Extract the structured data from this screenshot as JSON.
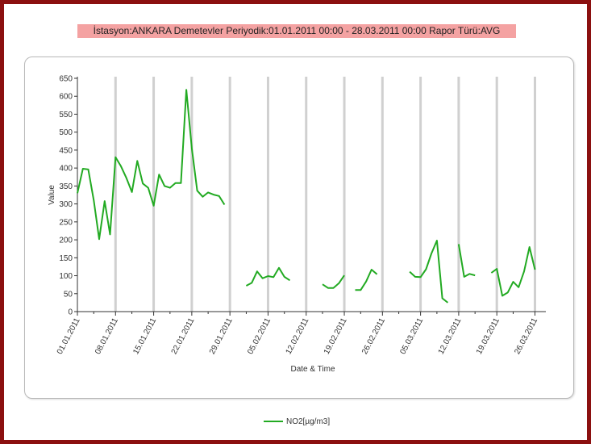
{
  "report": {
    "title": "İstasyon:ANKARA Demetevler Periyodik:01.01.2011  00:00 - 28.03.2011  00:00  Rapor Türü:AVG"
  },
  "chart_data": {
    "type": "line",
    "xlabel": "Date & Time",
    "ylabel": "Value",
    "ylim": [
      0,
      650
    ],
    "yticks": [
      0,
      50,
      100,
      150,
      200,
      250,
      300,
      350,
      400,
      450,
      500,
      550,
      600,
      650
    ],
    "xlim": [
      "2011-01-01",
      "2011-03-28"
    ],
    "xtick_labels": [
      "01.01.2011",
      "08.01.2011",
      "15.01.2011",
      "22.01.2011",
      "29.01.2011",
      "05.02.2011",
      "12.02.2011",
      "19.02.2011",
      "26.02.2011",
      "05.03.2011",
      "12.03.2011",
      "19.03.2011",
      "26.03.2011"
    ],
    "xtick_dates": [
      "2011-01-01",
      "2011-01-08",
      "2011-01-15",
      "2011-01-22",
      "2011-01-29",
      "2011-02-05",
      "2011-02-12",
      "2011-02-19",
      "2011-02-26",
      "2011-03-05",
      "2011-03-12",
      "2011-03-19",
      "2011-03-26"
    ],
    "grid": "vertical",
    "legend": "bottom",
    "series": [
      {
        "name": "NO2[µg/m3]",
        "color": "#22aa22",
        "segments": [
          [
            [
              "2011-01-01",
              330
            ],
            [
              "2011-01-02",
              398
            ],
            [
              "2011-01-03",
              396
            ],
            [
              "2011-01-04",
              310
            ],
            [
              "2011-01-05",
              202
            ],
            [
              "2011-01-06",
              308
            ],
            [
              "2011-01-07",
              215
            ],
            [
              "2011-01-08",
              430
            ],
            [
              "2011-01-09",
              405
            ],
            [
              "2011-01-10",
              372
            ],
            [
              "2011-01-11",
              333
            ],
            [
              "2011-01-12",
              420
            ],
            [
              "2011-01-13",
              357
            ],
            [
              "2011-01-14",
              345
            ],
            [
              "2011-01-15",
              295
            ],
            [
              "2011-01-16",
              382
            ],
            [
              "2011-01-17",
              350
            ],
            [
              "2011-01-18",
              345
            ],
            [
              "2011-01-19",
              358
            ],
            [
              "2011-01-20",
              358
            ],
            [
              "2011-01-21",
              618
            ],
            [
              "2011-01-22",
              455
            ],
            [
              "2011-01-23",
              337
            ],
            [
              "2011-01-24",
              320
            ],
            [
              "2011-01-25",
              332
            ],
            [
              "2011-01-26",
              326
            ],
            [
              "2011-01-27",
              322
            ],
            [
              "2011-01-28",
              298
            ]
          ],
          [
            [
              "2011-02-01",
              72
            ],
            [
              "2011-02-02",
              80
            ],
            [
              "2011-02-03",
              112
            ],
            [
              "2011-02-04",
              93
            ],
            [
              "2011-02-05",
              99
            ],
            [
              "2011-02-06",
              96
            ],
            [
              "2011-02-07",
              122
            ],
            [
              "2011-02-08",
              97
            ],
            [
              "2011-02-09",
              87
            ]
          ],
          [
            [
              "2011-02-15",
              76
            ],
            [
              "2011-02-16",
              66
            ],
            [
              "2011-02-17",
              66
            ],
            [
              "2011-02-18",
              79
            ],
            [
              "2011-02-19",
              101
            ]
          ],
          [
            [
              "2011-02-21",
              60
            ],
            [
              "2011-02-22",
              60
            ],
            [
              "2011-02-23",
              84
            ],
            [
              "2011-02-24",
              117
            ],
            [
              "2011-02-25",
              104
            ]
          ],
          [
            [
              "2011-03-03",
              111
            ],
            [
              "2011-03-04",
              97
            ],
            [
              "2011-03-05",
              96
            ],
            [
              "2011-03-06",
              118
            ],
            [
              "2011-03-07",
              162
            ],
            [
              "2011-03-08",
              198
            ],
            [
              "2011-03-09",
              37
            ],
            [
              "2011-03-10",
              25
            ]
          ],
          [
            [
              "2011-03-12",
              188
            ],
            [
              "2011-03-13",
              97
            ],
            [
              "2011-03-14",
              105
            ],
            [
              "2011-03-15",
              101
            ]
          ],
          [
            [
              "2011-03-18",
              108
            ],
            [
              "2011-03-19",
              119
            ],
            [
              "2011-03-20",
              44
            ],
            [
              "2011-03-21",
              53
            ],
            [
              "2011-03-22",
              83
            ],
            [
              "2011-03-23",
              68
            ],
            [
              "2011-03-24",
              112
            ],
            [
              "2011-03-25",
              180
            ],
            [
              "2011-03-26",
              117
            ]
          ]
        ]
      }
    ]
  }
}
